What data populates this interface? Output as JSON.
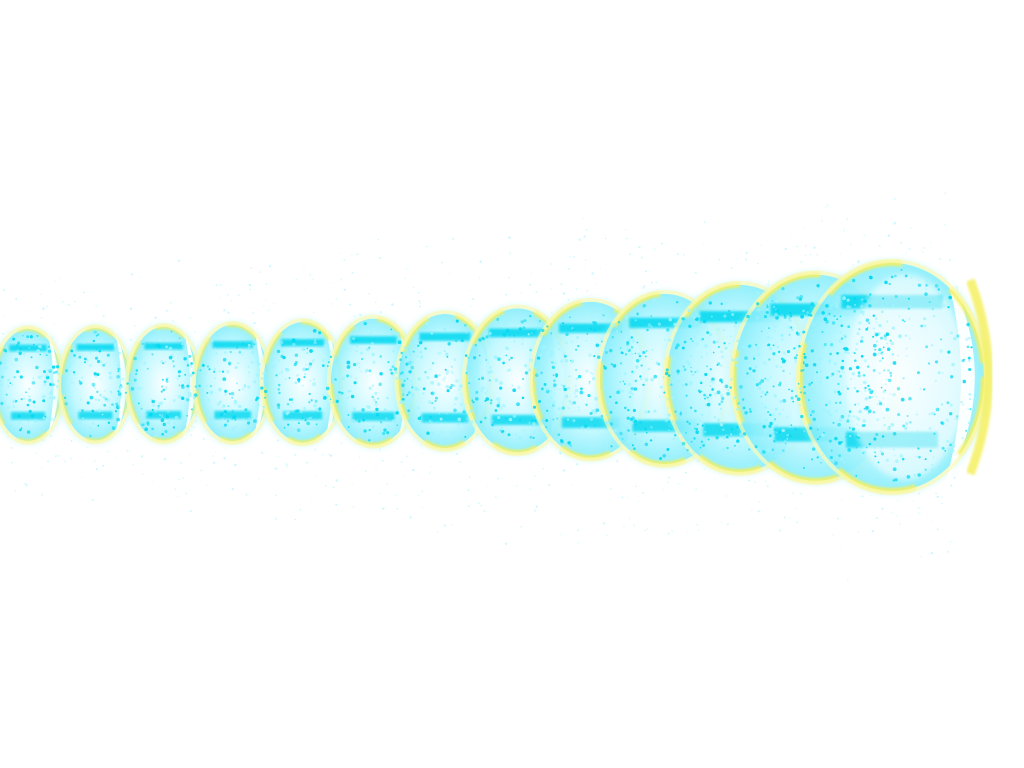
{
  "scene": {
    "description_free": true,
    "colors": {
      "background": "#ffffff",
      "particle_cyan": "#00d8f0",
      "particle_light_cyan": "#9ff4ff",
      "ring_yellow": "#f4f060",
      "ring_pale_yellow": "#fbf9b8",
      "core_white": "#ffffff"
    },
    "effect": {
      "ring_count": 13,
      "particle_style": "speckled",
      "glow": "soft"
    }
  }
}
